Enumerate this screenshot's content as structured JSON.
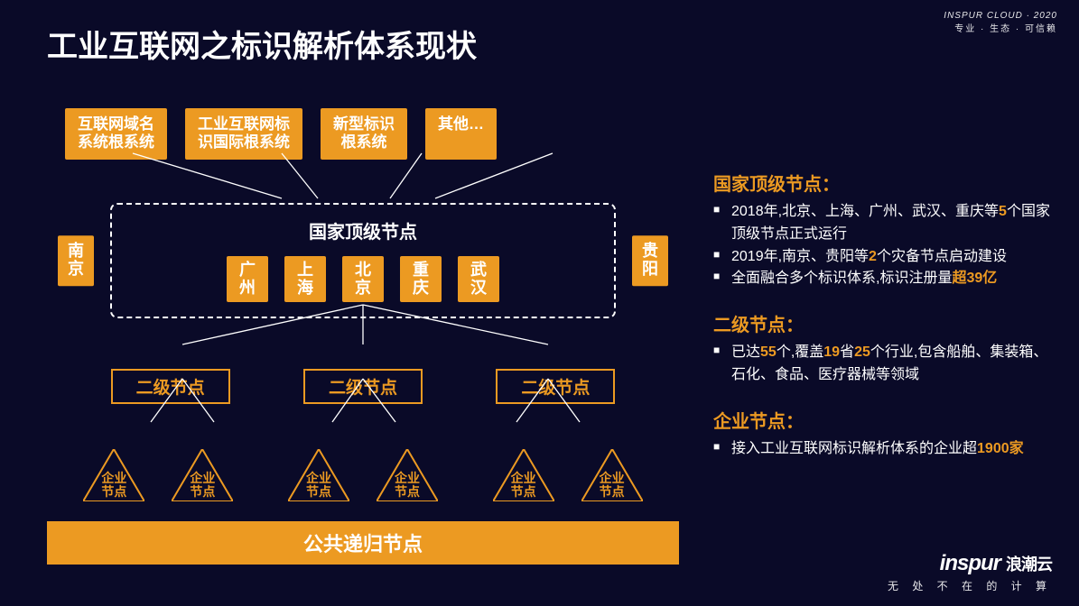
{
  "colors": {
    "background": "#0a0a28",
    "accent": "#ec9a22",
    "text": "#ffffff",
    "line": "#ffffff"
  },
  "header": {
    "brand_en": "INSPUR CLOUD · 2020",
    "brand_motto": "专业 · 生态 · 可信赖"
  },
  "title": "工业互联网之标识解析体系现状",
  "diagram": {
    "top_row": [
      "互联网域名\n系统根系统",
      "工业互联网标\n识国际根系统",
      "新型标识\n根系统",
      "其他…"
    ],
    "national_frame": {
      "title": "国家顶级节点",
      "side_left": "南\n京",
      "side_right": "贵\n阳",
      "cities": [
        "广\n州",
        "上\n海",
        "北\n京",
        "重\n庆",
        "武\n汉"
      ]
    },
    "tier2_label": "二级节点",
    "tier2_count": 3,
    "enterprise_label": "企业\n节点",
    "enterprise_per_tier2": 2,
    "bottom_bar": "公共递归节点"
  },
  "panel": {
    "sections": [
      {
        "heading": "国家顶级节点：",
        "items": [
          {
            "pre": "2018年,北京、上海、广州、武汉、重庆等",
            "hl": "5",
            "post": "个国家顶级节点正式运行"
          },
          {
            "pre": "2019年,南京、贵阳等",
            "hl": "2",
            "post": "个灾备节点启动建设"
          },
          {
            "pre": "全面融合多个标识体系,标识注册量",
            "hl": "超39亿",
            "post": ""
          }
        ]
      },
      {
        "heading": "二级节点：",
        "items": [
          {
            "pre": "已达",
            "hl": "55",
            "post": "个,覆盖",
            "hl2": "19",
            "post2": "省",
            "hl3": "25",
            "post3": "个行业,包含船舶、集装箱、石化、食品、医疗器械等领域"
          }
        ]
      },
      {
        "heading": "企业节点：",
        "items": [
          {
            "pre": "接入工业互联网标识解析体系的企业超",
            "hl": "1900家",
            "post": ""
          }
        ]
      }
    ]
  },
  "footer": {
    "logo_en": "inspur",
    "logo_cn": "浪潮云",
    "tagline": "无 处 不 在 的 计 算"
  }
}
